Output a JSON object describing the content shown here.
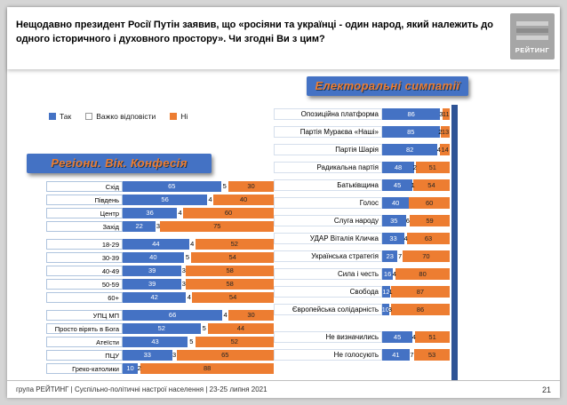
{
  "slide": {
    "question": "Нещодавно президент Росії Путін заявив, що «росіяни та українці - один народ, який належить до одного історичного і духовного простору». Чи згодні Ви з цим?",
    "logo_text": "РЕЙТИНГ",
    "footer": "група РЕЙТИНГ | Суспільно-політичні настрої населення | 23-25 липня 2021",
    "page_number": "21"
  },
  "legend": {
    "items": [
      {
        "label": "Так",
        "color": "#4472C4"
      },
      {
        "label": "Важко відповісти",
        "color": "#FFFFFF"
      },
      {
        "label": "Ні",
        "color": "#ED7D31"
      }
    ]
  },
  "colors": {
    "yes": "#4472C4",
    "dk": "#FFFFFF",
    "no": "#ED7D31",
    "banner_bg": "#4472C4",
    "banner_text": "#ED7D31",
    "accent_strip": "#2E5395"
  },
  "chart_data": [
    {
      "type": "bar",
      "orientation": "horizontal",
      "stacked": true,
      "title": "Регіони. Вік. Конфесія",
      "xlim": [
        0,
        100
      ],
      "series_names": [
        "Так",
        "Важко відповісти",
        "Ні"
      ],
      "groups": [
        {
          "rows": [
            {
              "label": "Схід",
              "values": [
                65,
                5,
                30
              ]
            },
            {
              "label": "Південь",
              "values": [
                56,
                4,
                40
              ]
            },
            {
              "label": "Центр",
              "values": [
                36,
                4,
                60
              ]
            },
            {
              "label": "Захід",
              "values": [
                22,
                3,
                75
              ]
            }
          ]
        },
        {
          "rows": [
            {
              "label": "18-29",
              "values": [
                44,
                4,
                52
              ]
            },
            {
              "label": "30-39",
              "values": [
                40,
                5,
                54
              ]
            },
            {
              "label": "40-49",
              "values": [
                39,
                3,
                58
              ]
            },
            {
              "label": "50-59",
              "values": [
                39,
                3,
                58
              ]
            },
            {
              "label": "60+",
              "values": [
                42,
                4,
                54
              ]
            }
          ]
        },
        {
          "rows": [
            {
              "label": "УПЦ МП",
              "values": [
                66,
                4,
                30
              ]
            },
            {
              "label": "Просто вірять в Бога",
              "values": [
                52,
                5,
                44
              ]
            },
            {
              "label": "Атеїсти",
              "values": [
                43,
                5,
                52
              ]
            },
            {
              "label": "ПЦУ",
              "values": [
                33,
                3,
                65
              ]
            },
            {
              "label": "Греко-католики",
              "values": [
                10,
                2,
                88
              ]
            }
          ]
        }
      ]
    },
    {
      "type": "bar",
      "orientation": "horizontal",
      "stacked": true,
      "title": "Електоральні симпатії",
      "xlim": [
        0,
        100
      ],
      "series_names": [
        "Так",
        "Важко відповісти",
        "Ні"
      ],
      "groups": [
        {
          "rows": [
            {
              "label": "Опозиційна платформа",
              "values": [
                86,
                3,
                11
              ]
            },
            {
              "label": "Партія Мураєва «Наші»",
              "values": [
                85,
                2,
                13
              ]
            },
            {
              "label": "Партія Шарія",
              "values": [
                82,
                4,
                14
              ]
            },
            {
              "label": "Радикальна партія",
              "values": [
                48,
                2,
                51
              ]
            },
            {
              "label": "Батьківщина",
              "values": [
                45,
                1,
                54
              ]
            },
            {
              "label": "Голос",
              "values": [
                40,
                0,
                60
              ]
            },
            {
              "label": "Слуга народу",
              "values": [
                35,
                6,
                59
              ]
            },
            {
              "label": "УДАР Віталія Кличка",
              "values": [
                33,
                4,
                63
              ]
            },
            {
              "label": "Українська стратегія",
              "values": [
                23,
                7,
                70
              ]
            },
            {
              "label": "Сила і честь",
              "values": [
                16,
                4,
                80
              ]
            },
            {
              "label": "Свобода",
              "values": [
                12,
                1,
                87
              ]
            },
            {
              "label": "Європейська солідарність",
              "values": [
                10,
                3,
                86
              ]
            }
          ]
        },
        {
          "rows": [
            {
              "label": "Не визначились",
              "values": [
                45,
                4,
                51
              ]
            },
            {
              "label": "Не голосують",
              "values": [
                41,
                7,
                53
              ]
            }
          ]
        }
      ]
    }
  ]
}
